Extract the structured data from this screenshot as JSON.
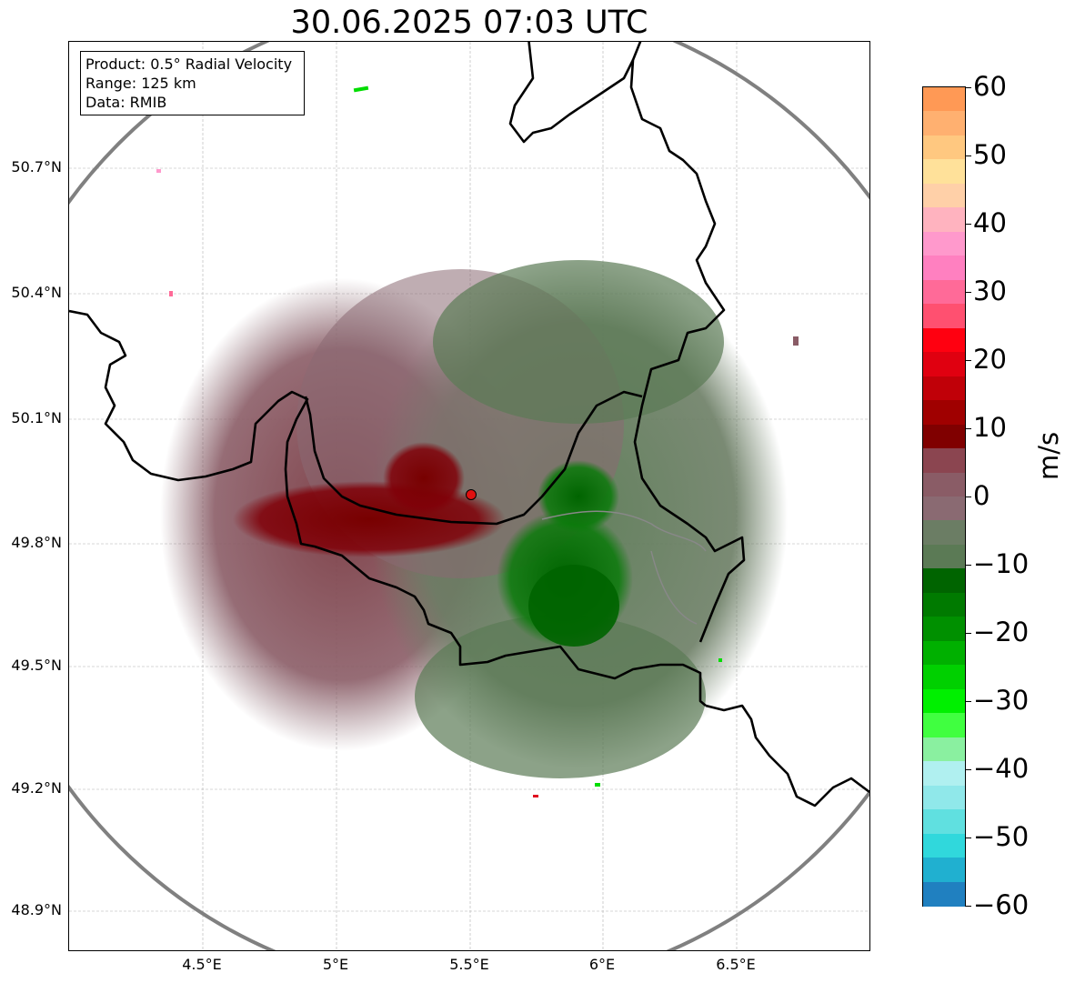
{
  "title": "30.06.2025 07:03 UTC",
  "info_box": {
    "product": "Product: 0.5° Radial Velocity",
    "range": "Range: 125 km",
    "data_source": "Data: RMIB"
  },
  "map": {
    "latitude_ticks": [
      "50.7°N",
      "50.4°N",
      "50.1°N",
      "49.8°N",
      "49.5°N",
      "49.2°N",
      "48.9°N"
    ],
    "longitude_ticks": [
      "4.5°E",
      "5°E",
      "5.5°E",
      "6°E",
      "6.5°E"
    ],
    "radar_site": "radar-location-marker",
    "range_ring_color": "#808080",
    "border_color": "#000000",
    "gridlines": true
  },
  "colorbar": {
    "unit": "m/s",
    "ticks": [
      "60",
      "50",
      "40",
      "30",
      "20",
      "10",
      "0",
      "−10",
      "−20",
      "−30",
      "−40",
      "−50",
      "−60"
    ],
    "range": [
      -60,
      60
    ],
    "colors_top_to_bottom": [
      "#ff9955",
      "#ffb070",
      "#ffc880",
      "#ffe19a",
      "#ffd0a8",
      "#ffb3bf",
      "#ff99cc",
      "#ff80c0",
      "#ff6a98",
      "#ff5070",
      "#ff0010",
      "#e00010",
      "#c00008",
      "#a00000",
      "#800000",
      "#8b4550",
      "#8a5c66",
      "#8a6a72",
      "#6b7d64",
      "#5b7a55",
      "#006400",
      "#007a00",
      "#009000",
      "#00b000",
      "#00d000",
      "#00f000",
      "#40ff40",
      "#8af0a0",
      "#b0f0f0",
      "#90e8ea",
      "#60e0e0",
      "#30d8dc",
      "#20b0d0",
      "#2080c0"
    ]
  }
}
